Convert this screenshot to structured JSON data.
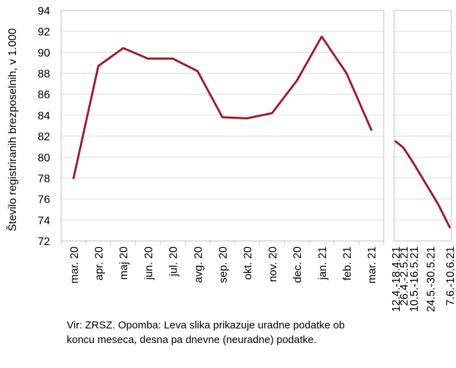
{
  "chart_data": [
    {
      "type": "line",
      "title": "",
      "xlabel": "",
      "ylabel": "Število registriranih brezposelnih, v 1.000",
      "ylim": [
        72,
        94
      ],
      "yticks": [
        72,
        74,
        76,
        78,
        80,
        82,
        84,
        86,
        88,
        90,
        92,
        94
      ],
      "grid": true,
      "categories": [
        "mar. 20",
        "apr. 20",
        "maj 20",
        "jun. 20",
        "jul. 20",
        "avg. 20",
        "sep. 20",
        "okt. 20",
        "nov. 20",
        "dec. 20",
        "jan. 21",
        "feb. 21",
        "mar. 21"
      ],
      "series": [
        {
          "color": "#A0182E",
          "values": [
            78.0,
            88.7,
            90.4,
            89.4,
            89.4,
            88.2,
            83.8,
            83.7,
            84.2,
            87.3,
            91.5,
            88.0,
            82.6
          ]
        }
      ]
    },
    {
      "type": "line",
      "title": "",
      "xlabel": "",
      "ylabel": "",
      "ylim": [
        72,
        94
      ],
      "grid": true,
      "categories": [
        "12.4.-18.4.21",
        "26.4.-2.5.21",
        "10.5.-16.5.21",
        "24.5.-30.5.21",
        "7.6.-10.6.21"
      ],
      "x_positions": [
        0,
        1.1,
        2.5,
        4.8,
        7.5
      ],
      "series": [
        {
          "color": "#A0182E",
          "values": [
            81.5,
            80.9,
            79.4,
            75.5,
            73.3
          ],
          "x": [
            0,
            1.1,
            2.5,
            5.9,
            7.5
          ]
        }
      ]
    }
  ],
  "footnote": "Vir: ZRSZ. Opomba: Leva slika prikazuje uradne podatke ob koncu meseca, desna pa dnevne (neuradne) podatke."
}
